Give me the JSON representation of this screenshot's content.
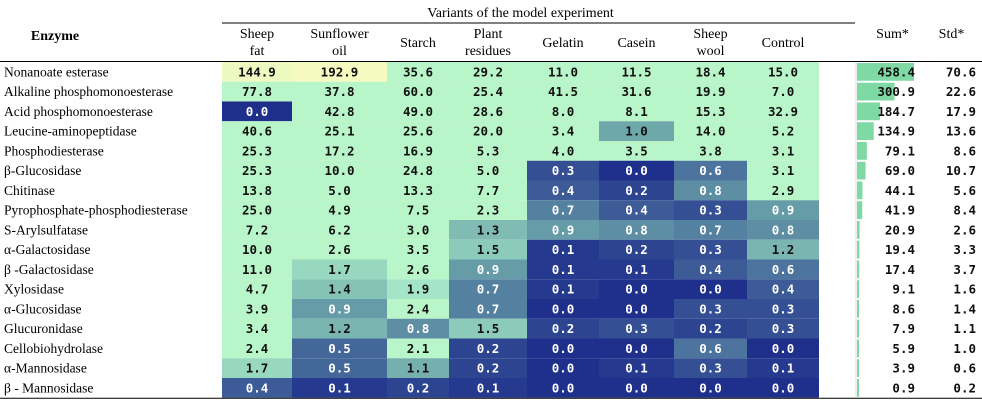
{
  "chart_data": {
    "type": "heatmap",
    "group_header": "Variants of the model experiment",
    "row_header": "Enzyme",
    "columns": [
      [
        "Sheep",
        "fat"
      ],
      [
        "Sunflower",
        "oil"
      ],
      [
        "Starch"
      ],
      [
        "Plant",
        "residues"
      ],
      [
        "Gelatin"
      ],
      [
        "Casein"
      ],
      [
        "Sheep",
        "wool"
      ],
      [
        "Control"
      ]
    ],
    "sum_header": "Sum*",
    "std_header": "Std*",
    "rows": [
      {
        "enzyme": "Nonanoate esterase",
        "values": [
          "144.9",
          "192.9",
          "35.6",
          "29.2",
          "11.0",
          "11.5",
          "18.4",
          "15.0"
        ],
        "sum": "458.4",
        "std": "70.6"
      },
      {
        "enzyme": "Alkaline phosphomonoesterase",
        "values": [
          "77.8",
          "37.8",
          "60.0",
          "25.4",
          "41.5",
          "31.6",
          "19.9",
          "7.0"
        ],
        "sum": "300.9",
        "std": "22.6"
      },
      {
        "enzyme": "Acid phosphomonoesterase",
        "values": [
          "0.0",
          "42.8",
          "49.0",
          "28.6",
          "8.0",
          "8.1",
          "15.3",
          "32.9"
        ],
        "sum": "184.7",
        "std": "17.9"
      },
      {
        "enzyme": "Leucine-aminopeptidase",
        "values": [
          "40.6",
          "25.1",
          "25.6",
          "20.0",
          "3.4",
          "1.0",
          "14.0",
          "5.2"
        ],
        "sum": "134.9",
        "std": "13.6"
      },
      {
        "enzyme": "Phosphodiesterase",
        "values": [
          "25.3",
          "17.2",
          "16.9",
          "5.3",
          "4.0",
          "3.5",
          "3.8",
          "3.1"
        ],
        "sum": "79.1",
        "std": "8.6"
      },
      {
        "enzyme": "β-Glucosidase",
        "values": [
          "25.3",
          "10.0",
          "24.8",
          "5.0",
          "0.3",
          "0.0",
          "0.6",
          "3.1"
        ],
        "sum": "69.0",
        "std": "10.7"
      },
      {
        "enzyme": "Chitinase",
        "values": [
          "13.8",
          "5.0",
          "13.3",
          "7.7",
          "0.4",
          "0.2",
          "0.8",
          "2.9"
        ],
        "sum": "44.1",
        "std": "5.6"
      },
      {
        "enzyme": "Pyrophosphate-phosphodiesterase",
        "values": [
          "25.0",
          "4.9",
          "7.5",
          "2.3",
          "0.7",
          "0.4",
          "0.3",
          "0.9"
        ],
        "sum": "41.9",
        "std": "8.4"
      },
      {
        "enzyme": "S-Arylsulfatase",
        "values": [
          "7.2",
          "6.2",
          "3.0",
          "1.3",
          "0.9",
          "0.8",
          "0.7",
          "0.8"
        ],
        "sum": "20.9",
        "std": "2.6"
      },
      {
        "enzyme": "α-Galactosidase",
        "values": [
          "10.0",
          "2.6",
          "3.5",
          "1.5",
          "0.1",
          "0.2",
          "0.3",
          "1.2"
        ],
        "sum": "19.4",
        "std": "3.3"
      },
      {
        "enzyme": "β -Galactosidase",
        "values": [
          "11.0",
          "1.7",
          "2.6",
          "0.9",
          "0.1",
          "0.1",
          "0.4",
          "0.6"
        ],
        "sum": "17.4",
        "std": "3.7"
      },
      {
        "enzyme": "Xylosidase",
        "values": [
          "4.7",
          "1.4",
          "1.9",
          "0.7",
          "0.1",
          "0.0",
          "0.0",
          "0.4"
        ],
        "sum": "9.1",
        "std": "1.6"
      },
      {
        "enzyme": "α-Glucosidase",
        "values": [
          "3.9",
          "0.9",
          "2.4",
          "0.7",
          "0.0",
          "0.0",
          "0.3",
          "0.3"
        ],
        "sum": "8.6",
        "std": "1.4"
      },
      {
        "enzyme": "Glucuronidase",
        "values": [
          "3.4",
          "1.2",
          "0.8",
          "1.5",
          "0.2",
          "0.3",
          "0.2",
          "0.3"
        ],
        "sum": "7.9",
        "std": "1.1"
      },
      {
        "enzyme": "Cellobiohydrolase",
        "values": [
          "2.4",
          "0.5",
          "2.1",
          "0.2",
          "0.0",
          "0.0",
          "0.6",
          "0.0"
        ],
        "sum": "5.9",
        "std": "1.0"
      },
      {
        "enzyme": "α-Mannosidase",
        "values": [
          "1.7",
          "0.5",
          "1.1",
          "0.2",
          "0.0",
          "0.1",
          "0.3",
          "0.1"
        ],
        "sum": "3.9",
        "std": "0.6"
      },
      {
        "enzyme": "β - Mannosidase",
        "values": [
          "0.4",
          "0.1",
          "0.2",
          "0.1",
          "0.0",
          "0.0",
          "0.0",
          "0.0"
        ],
        "sum": "0.9",
        "std": "0.2"
      }
    ],
    "colors": {
      "high": "#f5fac0",
      "mid": "#b8f5c8",
      "low_mid": "#a6e8c8",
      "teal": "#6fa8ab",
      "dark": "#1f2f8c",
      "sum_bar": "#7fd9a5",
      "rule": "#000000"
    }
  }
}
